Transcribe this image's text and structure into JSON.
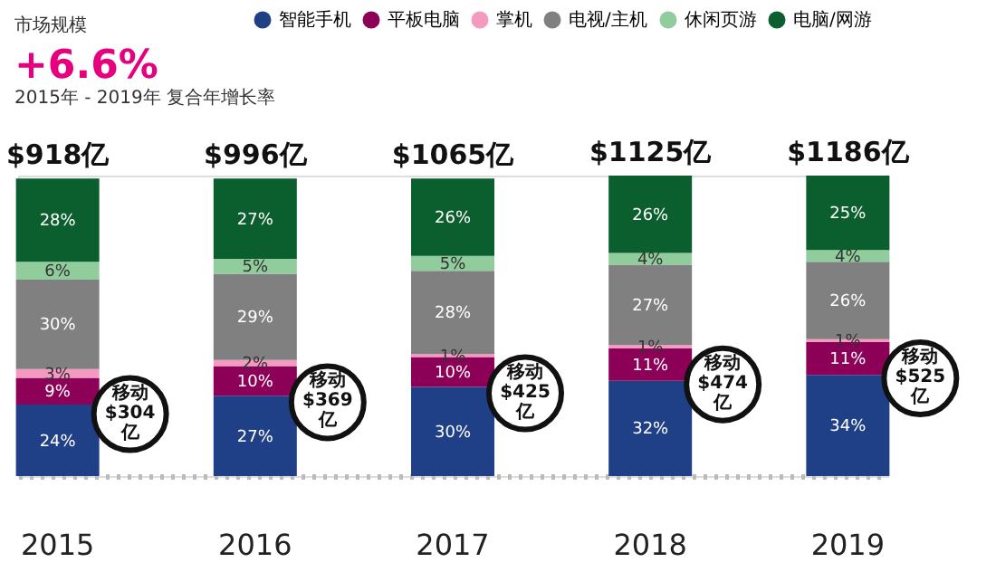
{
  "chart_data": {
    "type": "bar",
    "stacked": true,
    "title": "+6.6%",
    "subtitle": "2015年 - 2019年 复合年增长率",
    "annotations": [
      "市场规模",
      {
        "text": "$918亿",
        "x": "2015",
        "y": 100
      },
      {
        "text": "$996亿",
        "x": "2016",
        "y": 100
      },
      {
        "text": "$1065亿",
        "x": "2017",
        "y": 100
      },
      {
        "text": "$1125亿",
        "x": "2018",
        "y": 101
      },
      {
        "text": "$1186亿",
        "x": "2019",
        "y": 101
      },
      {
        "text": "移动\n$304\n亿",
        "x": "2015",
        "y": 33
      },
      {
        "text": "移动\n$369\n亿",
        "x": "2016",
        "y": 37
      },
      {
        "text": "移动\n$425\n亿",
        "x": "2017",
        "y": 40
      },
      {
        "text": "移动\n$474\n亿",
        "x": "2018",
        "y": 43
      },
      {
        "text": "移动\n$525\n亿",
        "x": "2019",
        "y": 45
      }
    ],
    "categories": [
      "2015",
      "2016",
      "2017",
      "2018",
      "2019"
    ],
    "series": [
      {
        "name": "智能手机",
        "color": "#1f3f86",
        "values": [
          24,
          27,
          30,
          32,
          34
        ],
        "value_labels": [
          "24%",
          "27%",
          "30%",
          "32%",
          "34%"
        ]
      },
      {
        "name": "平板电脑",
        "color": "#8c0058",
        "values": [
          9,
          10,
          10,
          11,
          11
        ],
        "value_labels": [
          "9%",
          "10%",
          "10%",
          "11%",
          "11%"
        ]
      },
      {
        "name": "掌机",
        "color": "#f49ac1",
        "values": [
          3,
          2,
          1,
          1,
          1
        ],
        "value_labels": [
          "3%",
          "2%",
          "1%",
          "1%",
          "1%"
        ]
      },
      {
        "name": "电视/主机",
        "color": "#808080",
        "values": [
          30,
          29,
          28,
          27,
          26
        ],
        "value_labels": [
          "30%",
          "29%",
          "28%",
          "27%",
          "26%"
        ]
      },
      {
        "name": "休闲页游",
        "color": "#90cc9c",
        "values": [
          6,
          5,
          5,
          4,
          4
        ],
        "value_labels": [
          "6%",
          "5%",
          "5%",
          "4%",
          "4%"
        ]
      },
      {
        "name": "电脑/网游",
        "color": "#0b5f2e",
        "values": [
          28,
          27,
          26,
          26,
          25
        ],
        "value_labels": [
          "28%",
          "27%",
          "26%",
          "26%",
          "25%"
        ]
      }
    ],
    "legend": "top right"
  }
}
